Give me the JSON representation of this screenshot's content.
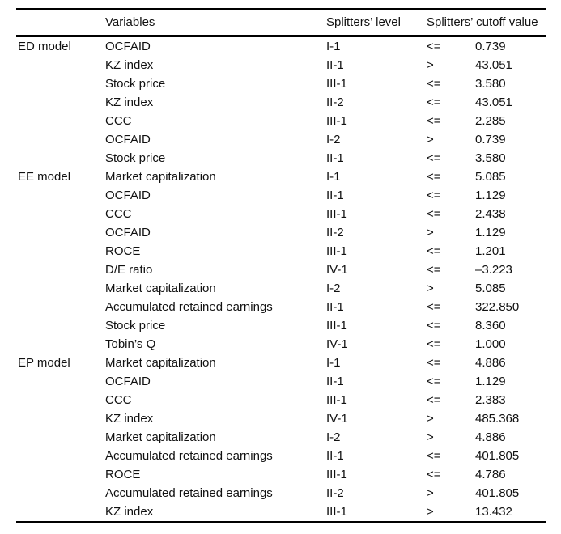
{
  "table": {
    "headers": {
      "model": "",
      "variables": "Variables",
      "level": "Splitters’ level",
      "cutoff": "Splitters’ cutoff value"
    },
    "groups": [
      {
        "model": "ED model",
        "rows": [
          {
            "variable": "OCFAID",
            "level": "I-1",
            "op": "<=",
            "value": "0.739"
          },
          {
            "variable": "KZ index",
            "level": "II-1",
            "op": ">",
            "value": "43.051"
          },
          {
            "variable": "Stock price",
            "level": "III-1",
            "op": "<=",
            "value": "3.580"
          },
          {
            "variable": "KZ index",
            "level": "II-2",
            "op": "<=",
            "value": "43.051"
          },
          {
            "variable": "CCC",
            "level": "III-1",
            "op": "<=",
            "value": "2.285"
          },
          {
            "variable": "OCFAID",
            "level": "I-2",
            "op": ">",
            "value": "0.739"
          },
          {
            "variable": "Stock price",
            "level": "II-1",
            "op": "<=",
            "value": "3.580"
          }
        ]
      },
      {
        "model": "EE model",
        "rows": [
          {
            "variable": "Market capitalization",
            "level": "I-1",
            "op": "<=",
            "value": "5.085"
          },
          {
            "variable": "OCFAID",
            "level": "II-1",
            "op": "<=",
            "value": "1.129"
          },
          {
            "variable": "CCC",
            "level": "III-1",
            "op": "<=",
            "value": "2.438"
          },
          {
            "variable": "OCFAID",
            "level": "II-2",
            "op": ">",
            "value": "1.129"
          },
          {
            "variable": "ROCE",
            "level": "III-1",
            "op": "<=",
            "value": "1.201"
          },
          {
            "variable": "D/E ratio",
            "level": "IV-1",
            "op": "<=",
            "value": "–3.223"
          },
          {
            "variable": "Market capitalization",
            "level": "I-2",
            "op": ">",
            "value": "5.085"
          },
          {
            "variable": "Accumulated retained earnings",
            "level": "II-1",
            "op": "<=",
            "value": "322.850"
          },
          {
            "variable": "Stock price",
            "level": "III-1",
            "op": "<=",
            "value": "8.360"
          },
          {
            "variable": "Tobin’s Q",
            "level": "IV-1",
            "op": "<=",
            "value": "1.000"
          }
        ]
      },
      {
        "model": "EP model",
        "rows": [
          {
            "variable": "Market capitalization",
            "level": "I-1",
            "op": "<=",
            "value": "4.886"
          },
          {
            "variable": "OCFAID",
            "level": "II-1",
            "op": "<=",
            "value": "1.129"
          },
          {
            "variable": "CCC",
            "level": "III-1",
            "op": "<=",
            "value": "2.383"
          },
          {
            "variable": "KZ index",
            "level": "IV-1",
            "op": ">",
            "value": "485.368"
          },
          {
            "variable": "Market capitalization",
            "level": "I-2",
            "op": ">",
            "value": "4.886"
          },
          {
            "variable": "Accumulated retained earnings",
            "level": "II-1",
            "op": "<=",
            "value": "401.805"
          },
          {
            "variable": "ROCE",
            "level": "III-1",
            "op": "<=",
            "value": "4.786"
          },
          {
            "variable": "Accumulated retained earnings",
            "level": "II-2",
            "op": ">",
            "value": "401.805"
          },
          {
            "variable": "KZ index",
            "level": "III-1",
            "op": ">",
            "value": "13.432"
          }
        ]
      }
    ]
  }
}
